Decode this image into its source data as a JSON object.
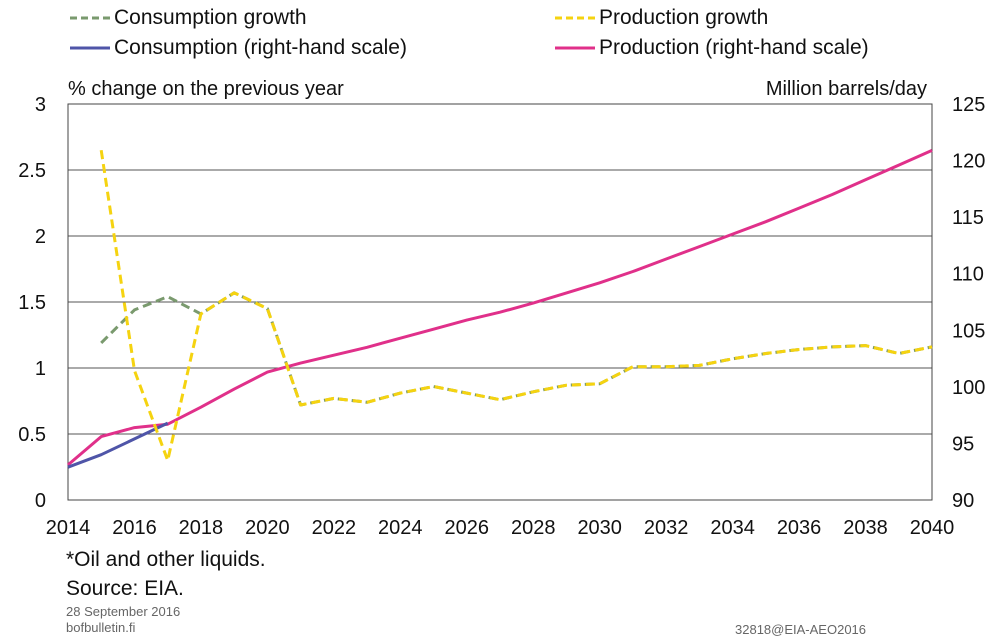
{
  "chart_data": {
    "type": "line",
    "x": [
      2014,
      2015,
      2016,
      2017,
      2018,
      2019,
      2020,
      2021,
      2022,
      2023,
      2024,
      2025,
      2026,
      2027,
      2028,
      2029,
      2030,
      2031,
      2032,
      2033,
      2034,
      2035,
      2036,
      2037,
      2038,
      2039,
      2040
    ],
    "x_ticks": [
      "2014",
      "2016",
      "2018",
      "2020",
      "2022",
      "2024",
      "2026",
      "2028",
      "2030",
      "2032",
      "2034",
      "2036",
      "2038",
      "2040"
    ],
    "y_left_ticks": [
      "0",
      "0.5",
      "1",
      "1.5",
      "2",
      "2.5",
      "3"
    ],
    "y_right_ticks": [
      "90",
      "95",
      "100",
      "105",
      "110",
      "115",
      "120",
      "125"
    ],
    "ylim_left": [
      0,
      3
    ],
    "ylim_right": [
      90,
      125
    ],
    "ylabel_left": "% change on the previous year",
    "ylabel_right": "Million barrels/day",
    "grid": true,
    "series": [
      {
        "name": "Consumption growth",
        "axis": "left",
        "style": "dashed",
        "color": "#7a9a6e",
        "x": [
          2015,
          2016,
          2017,
          2018,
          2019,
          2020,
          2021,
          2022,
          2023,
          2024,
          2025,
          2026,
          2027,
          2028,
          2029,
          2030,
          2031,
          2032,
          2033,
          2034,
          2035,
          2036,
          2037,
          2038,
          2039,
          2040
        ],
        "values": [
          1.19,
          1.44,
          1.54,
          1.41,
          1.57,
          1.45,
          0.72,
          0.77,
          0.74,
          0.81,
          0.86,
          0.81,
          0.76,
          0.82,
          0.87,
          0.88,
          1.01,
          1.01,
          1.02,
          1.07,
          1.11,
          1.14,
          1.16,
          1.17,
          1.11,
          1.16
        ]
      },
      {
        "name": "Production growth",
        "axis": "left",
        "style": "dashed",
        "color": "#f5d310",
        "x": [
          2015,
          2016,
          2017,
          2018,
          2019,
          2020,
          2021,
          2022,
          2023,
          2024,
          2025,
          2026,
          2027,
          2028,
          2029,
          2030,
          2031,
          2032,
          2033,
          2034,
          2035,
          2036,
          2037,
          2038,
          2039,
          2040
        ],
        "values": [
          2.65,
          0.98,
          0.3,
          1.41,
          1.57,
          1.45,
          0.72,
          0.77,
          0.74,
          0.81,
          0.86,
          0.81,
          0.76,
          0.82,
          0.87,
          0.88,
          1.01,
          1.01,
          1.02,
          1.07,
          1.11,
          1.14,
          1.16,
          1.17,
          1.11,
          1.16
        ]
      },
      {
        "name": "Consumption (right-hand scale)",
        "axis": "right",
        "style": "solid",
        "color": "#4f55a8",
        "x": [
          2014,
          2015,
          2016,
          2017
        ],
        "values": [
          92.9,
          94.0,
          95.4,
          96.8
        ]
      },
      {
        "name": "Production (right-hand scale)",
        "axis": "right",
        "style": "solid",
        "color": "#e0308a",
        "x": [
          2014,
          2015,
          2016,
          2017,
          2018,
          2019,
          2020,
          2021,
          2022,
          2023,
          2024,
          2025,
          2026,
          2027,
          2028,
          2029,
          2030,
          2031,
          2032,
          2033,
          2034,
          2035,
          2036,
          2037,
          2038,
          2039,
          2040
        ],
        "values": [
          93.1,
          95.6,
          96.4,
          96.7,
          98.2,
          99.8,
          101.3,
          102.1,
          102.8,
          103.5,
          104.3,
          105.1,
          105.9,
          106.6,
          107.4,
          108.3,
          109.2,
          110.2,
          111.3,
          112.4,
          113.5,
          114.6,
          115.8,
          117.0,
          118.3,
          119.6,
          120.9
        ]
      }
    ]
  },
  "footnote": "*Oil and other liquids.",
  "source": "Source: EIA.",
  "date": "28 September 2016",
  "site": "bofbulletin.fi",
  "code": "32818@EIA-AEO2016"
}
